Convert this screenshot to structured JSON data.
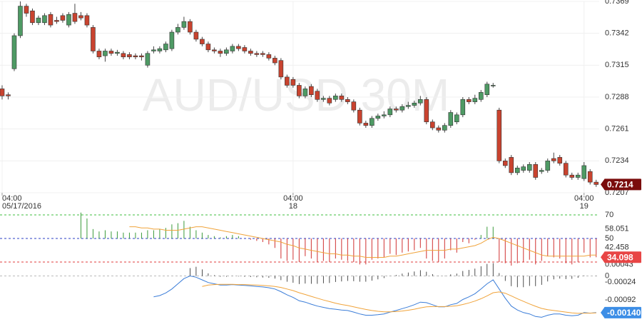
{
  "chart_data": [
    {
      "type": "candlestick",
      "watermark": "AUD/USD 30M",
      "xlim": [
        -0.35,
        98.5
      ],
      "xticks": [
        {
          "value": 0,
          "label": "04:00",
          "sublabel": "05/17/2016"
        },
        {
          "value": 48,
          "label": "04:00",
          "sublabel": "18"
        },
        {
          "value": 96,
          "label": "04:00",
          "sublabel": "19"
        }
      ],
      "ylim": [
        0.7207,
        0.7369
      ],
      "yticks": [
        0.7369,
        0.7342,
        0.7315,
        0.7288,
        0.7261,
        0.7234,
        0.7207
      ],
      "up_color": "#4e9a64",
      "down_color": "#c9432f",
      "badge_color": "#7a0c0c",
      "grid": true,
      "open": [
        0.7295,
        0.729,
        0.7312,
        0.734,
        0.7365,
        0.7361,
        0.7351,
        0.7351,
        0.7358,
        0.7353,
        0.7357,
        0.7349,
        0.7359,
        0.7357,
        0.7357,
        0.7347,
        0.7327,
        0.7323,
        0.7327,
        0.7325,
        0.7325,
        0.7324,
        0.7323,
        0.7323,
        0.7315,
        0.7327,
        0.7327,
        0.7328,
        0.7329,
        0.7343,
        0.7347,
        0.7352,
        0.7343,
        0.7337,
        0.7333,
        0.7328,
        0.7327,
        0.7325,
        0.7327,
        0.7331,
        0.733,
        0.7327,
        0.7325,
        0.7325,
        0.7324,
        0.7321,
        0.7319,
        0.7305,
        0.7303,
        0.7298,
        0.7289,
        0.7297,
        0.7293,
        0.7286,
        0.7287,
        0.7286,
        0.7289,
        0.7286,
        0.7284,
        0.7277,
        0.7266,
        0.7264,
        0.727,
        0.7272,
        0.7273,
        0.7278,
        0.7277,
        0.728,
        0.7281,
        0.7283,
        0.7286,
        0.7267,
        0.7262,
        0.726,
        0.7264,
        0.7267,
        0.7273,
        0.7286,
        0.7284,
        0.7286,
        0.729,
        0.7298,
        0.7277,
        0.7234,
        0.7237,
        0.7224,
        0.7226,
        0.7226,
        0.7231,
        0.7225,
        0.7226,
        0.7236,
        0.7237,
        0.7232,
        0.7222,
        0.722,
        0.7219,
        0.7225,
        0.7216
      ],
      "high": [
        0.7298,
        0.7292,
        0.7342,
        0.7369,
        0.7367,
        0.7363,
        0.7357,
        0.7359,
        0.736,
        0.7356,
        0.7359,
        0.736,
        0.7367,
        0.736,
        0.7359,
        0.7349,
        0.7329,
        0.7329,
        0.7329,
        0.7328,
        0.7327,
        0.7326,
        0.7325,
        0.7325,
        0.7327,
        0.7331,
        0.7331,
        0.7335,
        0.7345,
        0.735,
        0.7356,
        0.7354,
        0.7345,
        0.7339,
        0.7335,
        0.733,
        0.7329,
        0.733,
        0.7333,
        0.7333,
        0.7332,
        0.7329,
        0.7327,
        0.7327,
        0.7326,
        0.7323,
        0.7321,
        0.7307,
        0.7305,
        0.73,
        0.7297,
        0.7299,
        0.7295,
        0.7289,
        0.7289,
        0.7291,
        0.7291,
        0.7288,
        0.7286,
        0.7279,
        0.7268,
        0.7272,
        0.7274,
        0.7276,
        0.728,
        0.728,
        0.7282,
        0.7284,
        0.7285,
        0.7289,
        0.7288,
        0.7269,
        0.7264,
        0.7266,
        0.7277,
        0.7275,
        0.7288,
        0.7288,
        0.729,
        0.7294,
        0.7301,
        0.73,
        0.7279,
        0.7236,
        0.7239,
        0.723,
        0.7231,
        0.7233,
        0.7233,
        0.7228,
        0.7236,
        0.7241,
        0.7239,
        0.7234,
        0.7224,
        0.7224,
        0.7233,
        0.7227,
        0.7218
      ],
      "low": [
        0.7286,
        0.7286,
        0.731,
        0.7338,
        0.7356,
        0.7349,
        0.7349,
        0.7349,
        0.7347,
        0.735,
        0.7351,
        0.7347,
        0.735,
        0.7353,
        0.7347,
        0.7325,
        0.732,
        0.7318,
        0.7323,
        0.7323,
        0.732,
        0.732,
        0.732,
        0.7319,
        0.7313,
        0.7325,
        0.7325,
        0.7326,
        0.7327,
        0.7341,
        0.7345,
        0.7341,
        0.7335,
        0.7331,
        0.7326,
        0.7325,
        0.7322,
        0.7323,
        0.7325,
        0.7327,
        0.7325,
        0.7323,
        0.7322,
        0.7322,
        0.7319,
        0.7315,
        0.7303,
        0.7296,
        0.7296,
        0.7287,
        0.7287,
        0.7288,
        0.7284,
        0.7284,
        0.7281,
        0.7284,
        0.7284,
        0.7282,
        0.7275,
        0.7264,
        0.7262,
        0.7262,
        0.7268,
        0.727,
        0.7271,
        0.7275,
        0.7275,
        0.7278,
        0.7279,
        0.7281,
        0.7265,
        0.726,
        0.7258,
        0.7258,
        0.7262,
        0.7265,
        0.7271,
        0.7282,
        0.7282,
        0.7284,
        0.7288,
        0.7296,
        0.7232,
        0.7228,
        0.7222,
        0.7222,
        0.7224,
        0.7224,
        0.7218,
        0.7223,
        0.7224,
        0.7232,
        0.723,
        0.722,
        0.7218,
        0.7218,
        0.7217,
        0.7214,
        0.7212
      ],
      "close": [
        0.7289,
        0.7289,
        0.734,
        0.7365,
        0.7359,
        0.7351,
        0.7355,
        0.7357,
        0.7349,
        0.7352,
        0.7353,
        0.7358,
        0.7352,
        0.7355,
        0.7349,
        0.7327,
        0.7322,
        0.7327,
        0.7325,
        0.7326,
        0.7322,
        0.7322,
        0.7322,
        0.7322,
        0.7325,
        0.7328,
        0.7329,
        0.7333,
        0.7343,
        0.7347,
        0.7352,
        0.7343,
        0.7337,
        0.7333,
        0.7328,
        0.7327,
        0.7325,
        0.7328,
        0.7331,
        0.7329,
        0.7327,
        0.7325,
        0.7324,
        0.7324,
        0.7321,
        0.7317,
        0.7305,
        0.7298,
        0.7298,
        0.7289,
        0.7295,
        0.729,
        0.7286,
        0.7287,
        0.7283,
        0.7289,
        0.7286,
        0.7284,
        0.7277,
        0.7266,
        0.7264,
        0.727,
        0.7272,
        0.7273,
        0.7278,
        0.7277,
        0.728,
        0.7281,
        0.7283,
        0.7286,
        0.7267,
        0.7262,
        0.726,
        0.7264,
        0.7275,
        0.7273,
        0.7286,
        0.7284,
        0.7287,
        0.7292,
        0.7299,
        0.7298,
        0.7234,
        0.723,
        0.7224,
        0.7228,
        0.7229,
        0.7231,
        0.722,
        0.7226,
        0.7234,
        0.7234,
        0.7232,
        0.7222,
        0.722,
        0.7222,
        0.723,
        0.7216,
        0.7214
      ]
    },
    {
      "type": "oscillator",
      "xlim": [
        -0.35,
        98.5
      ],
      "ylim": [
        27,
        76.7
      ],
      "yticks": [
        70,
        58.051,
        50,
        42.458
      ],
      "levels": [
        {
          "value": 70,
          "color": "#3fbf3f"
        },
        {
          "value": 50,
          "color": "#2b3fc4"
        },
        {
          "value": 30,
          "color": "#e23b3b"
        }
      ],
      "baseline": 50,
      "up_color": "#3a9a3a",
      "down_color": "#d03030",
      "badge_color": "#e84545",
      "series": [
        {
          "style": "histogram",
          "values": [
            null,
            null,
            null,
            null,
            null,
            null,
            null,
            null,
            null,
            null,
            null,
            null,
            null,
            72,
            67,
            58,
            56,
            57,
            56,
            56,
            55,
            55,
            55,
            55,
            57,
            57,
            58,
            59,
            62,
            63,
            65,
            60,
            57,
            55,
            53,
            52,
            51,
            52,
            53,
            52,
            50,
            49,
            48,
            47,
            45,
            42,
            33,
            31,
            32,
            30,
            35,
            33,
            30,
            31,
            30,
            33,
            32,
            31,
            30,
            28,
            28,
            32,
            33,
            34,
            37,
            36,
            38,
            39,
            40,
            42,
            33,
            31,
            30,
            33,
            40,
            38,
            47,
            46,
            49,
            53,
            60,
            60,
            30,
            29,
            27,
            29,
            30,
            32,
            28,
            31,
            35,
            34,
            33,
            29,
            28,
            30,
            38,
            34,
            34.098
          ]
        },
        {
          "style": "line",
          "color": "#f0a33a",
          "values": [
            null,
            null,
            null,
            null,
            null,
            null,
            null,
            null,
            null,
            null,
            null,
            null,
            null,
            null,
            null,
            null,
            null,
            null,
            null,
            null,
            null,
            60,
            60,
            59,
            59,
            58,
            58,
            57,
            57,
            57,
            58,
            59,
            60,
            60,
            59,
            58,
            57,
            56,
            55,
            54,
            53,
            52,
            51,
            50,
            49,
            48,
            47,
            45,
            44,
            42,
            41,
            40,
            39,
            38,
            37,
            37,
            36,
            36,
            35,
            35,
            34,
            34,
            34,
            34,
            35,
            35,
            36,
            37,
            38,
            39,
            40,
            40,
            40,
            40,
            41,
            41,
            42,
            43,
            44,
            46,
            49,
            51,
            50,
            48,
            46,
            44,
            42,
            40,
            38,
            36,
            35,
            35,
            35,
            35,
            35,
            35,
            35,
            36,
            36
          ]
        }
      ]
    },
    {
      "type": "macd",
      "xlim": [
        -0.35,
        98.5
      ],
      "ylim": [
        -0.00165,
        0.00045
      ],
      "yticks": [
        0.00043,
        0,
        -0.00024,
        -0.00092
      ],
      "zero_color": "#bbbbbb",
      "badge_color": "#3d8ee6",
      "last_value_label": {
        "value": -0.0014,
        "label": "-0.00140"
      },
      "series": [
        {
          "style": "histogram",
          "color": "#222222",
          "values": [
            null,
            null,
            null,
            null,
            null,
            null,
            null,
            null,
            null,
            null,
            null,
            null,
            null,
            null,
            null,
            null,
            null,
            null,
            null,
            null,
            null,
            null,
            null,
            null,
            null,
            null,
            null,
            null,
            null,
            null,
            null,
            0.0003,
            0.00035,
            0.00025,
            0.0001,
            3e-05,
            -3e-05,
            -3e-05,
            -1e-05,
            -2e-05,
            -3e-05,
            -4e-05,
            -5e-05,
            -6e-05,
            -7e-05,
            -0.0001,
            -0.00016,
            -0.00022,
            -0.00026,
            -0.00031,
            -0.00029,
            -0.0003,
            -0.0003,
            -0.00028,
            -0.00027,
            -0.00023,
            -0.00021,
            -0.00019,
            -0.0002,
            -0.00022,
            -0.00022,
            -0.00018,
            -0.00013,
            -8e-05,
            -1e-05,
            4e-05,
            9e-05,
            0.00013,
            0.00017,
            0.00022,
            0.00016,
            7e-05,
            -1e-05,
            -1e-05,
            6e-05,
            9e-05,
            0.00019,
            0.00023,
            0.00028,
            0.00037,
            0.00046,
            0.00049,
            0.00011,
            -0.00019,
            -0.00039,
            -0.00043,
            -0.00043,
            -0.00038,
            -0.00039,
            -0.00034,
            -0.00021,
            -0.00013,
            -0.0001,
            -0.00012,
            -0.00011,
            -7e-05,
            2e-05,
            0,
            1e-05
          ]
        },
        {
          "style": "line",
          "color": "#3b7dd8",
          "values": [
            null,
            null,
            null,
            null,
            null,
            null,
            null,
            null,
            null,
            null,
            null,
            null,
            null,
            null,
            null,
            null,
            null,
            null,
            null,
            null,
            null,
            null,
            null,
            null,
            null,
            -0.0008,
            -0.00075,
            -0.00065,
            -0.0005,
            -0.0003,
            -0.0001,
            0,
            -5e-05,
            -0.00015,
            -0.00025,
            -0.0003,
            -0.00035,
            -0.00035,
            -0.00033,
            -0.00035,
            -0.00036,
            -0.00038,
            -0.0004,
            -0.00042,
            -0.00045,
            -0.0005,
            -0.0006,
            -0.00072,
            -0.00082,
            -0.00095,
            -0.001,
            -0.00108,
            -0.00115,
            -0.0012,
            -0.00125,
            -0.00127,
            -0.0013,
            -0.00132,
            -0.00138,
            -0.00145,
            -0.0015,
            -0.0015,
            -0.00148,
            -0.00145,
            -0.00138,
            -0.00132,
            -0.00125,
            -0.00118,
            -0.0011,
            -0.001,
            -0.00102,
            -0.0011,
            -0.00118,
            -0.00118,
            -0.0011,
            -0.00105,
            -0.0009,
            -0.0008,
            -0.00068,
            -0.0005,
            -0.0003,
            -0.00015,
            -0.0005,
            -0.00085,
            -0.00115,
            -0.0013,
            -0.0014,
            -0.00145,
            -0.00155,
            -0.00158,
            -0.0015,
            -0.00145,
            -0.00145,
            -0.0015,
            -0.00152,
            -0.0015,
            -0.0014,
            -0.00142,
            -0.0014
          ]
        },
        {
          "style": "line",
          "color": "#f0a33a",
          "values": [
            null,
            null,
            null,
            null,
            null,
            null,
            null,
            null,
            null,
            null,
            null,
            null,
            null,
            null,
            null,
            null,
            null,
            null,
            null,
            null,
            null,
            null,
            null,
            null,
            null,
            null,
            null,
            null,
            null,
            null,
            null,
            null,
            null,
            -0.0004,
            -0.00035,
            -0.00033,
            -0.00032,
            -0.00032,
            -0.00032,
            -0.00033,
            -0.00033,
            -0.00034,
            -0.00035,
            -0.00036,
            -0.00038,
            -0.0004,
            -0.00044,
            -0.0005,
            -0.00056,
            -0.00064,
            -0.00071,
            -0.00078,
            -0.00085,
            -0.00092,
            -0.00098,
            -0.00104,
            -0.00109,
            -0.00113,
            -0.00118,
            -0.00123,
            -0.00128,
            -0.00132,
            -0.00135,
            -0.00137,
            -0.00137,
            -0.00136,
            -0.00134,
            -0.00131,
            -0.00127,
            -0.00122,
            -0.00118,
            -0.00117,
            -0.00117,
            -0.00117,
            -0.00116,
            -0.00114,
            -0.00109,
            -0.00103,
            -0.00096,
            -0.00087,
            -0.00076,
            -0.00064,
            -0.00061,
            -0.00066,
            -0.00076,
            -0.00087,
            -0.00097,
            -0.00107,
            -0.00116,
            -0.00124,
            -0.00129,
            -0.00132,
            -0.00135,
            -0.00138,
            -0.00141,
            -0.00143,
            -0.00142,
            -0.00142,
            -0.00141
          ]
        }
      ]
    }
  ]
}
